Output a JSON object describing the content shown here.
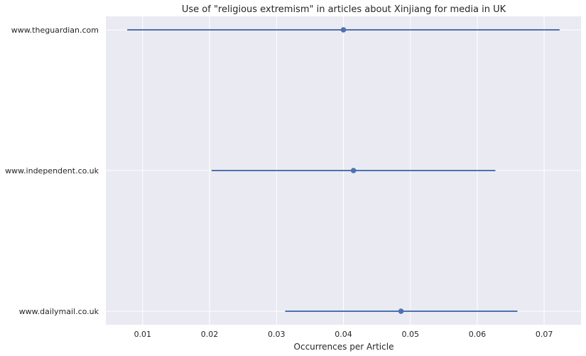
{
  "chart_data": {
    "type": "scatter",
    "title": "Use of \"religious extremism\" in articles about Xinjiang for media in UK",
    "xlabel": "Occurrences per Article",
    "ylabel": "",
    "xlim": [
      0.0045,
      0.0755
    ],
    "xticks": [
      0.01,
      0.02,
      0.03,
      0.04,
      0.05,
      0.06,
      0.07
    ],
    "xtick_labels": [
      "0.01",
      "0.02",
      "0.03",
      "0.04",
      "0.05",
      "0.06",
      "0.07"
    ],
    "categories": [
      "www.theguardian.com",
      "www.independent.co.uk",
      "www.dailymail.co.uk"
    ],
    "points": [
      {
        "category": "www.theguardian.com",
        "value": 0.04,
        "low": 0.0077,
        "high": 0.0723
      },
      {
        "category": "www.independent.co.uk",
        "value": 0.0415,
        "low": 0.0203,
        "high": 0.0627
      },
      {
        "category": "www.dailymail.co.uk",
        "value": 0.0486,
        "low": 0.0313,
        "high": 0.066
      }
    ],
    "grid": true,
    "colors": {
      "series": "#4c72b0",
      "background": "#eaeaf2",
      "grid": "#ffffff"
    }
  }
}
